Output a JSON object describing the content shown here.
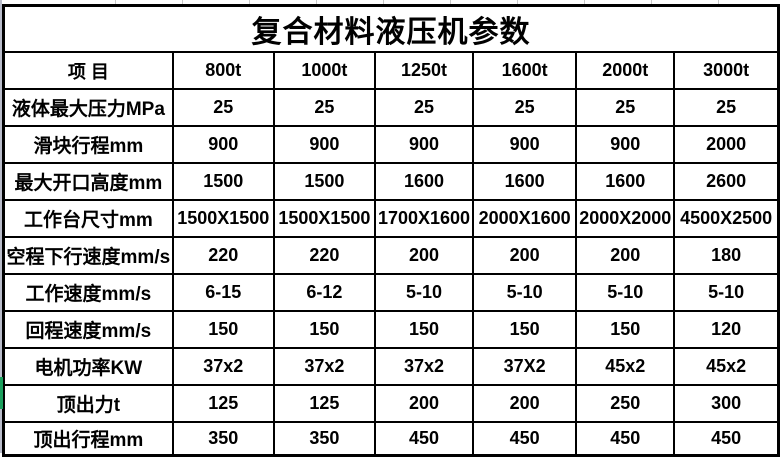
{
  "title": "复合材料液压机参数",
  "table": {
    "header": [
      "项  目",
      "800t",
      "1000t",
      "1250t",
      "1600t",
      "2000t",
      "3000t"
    ],
    "rows": [
      {
        "label": "液体最大压力MPa",
        "values": [
          "25",
          "25",
          "25",
          "25",
          "25",
          "25"
        ]
      },
      {
        "label": "滑块行程mm",
        "values": [
          "900",
          "900",
          "900",
          "900",
          "900",
          "2000"
        ]
      },
      {
        "label": "最大开口高度mm",
        "values": [
          "1500",
          "1500",
          "1600",
          "1600",
          "1600",
          "2600"
        ]
      },
      {
        "label": "工作台尺寸mm",
        "values": [
          "1500X1500",
          "1500X1500",
          "1700X1600",
          "2000X1600",
          "2000X2000",
          "4500X2500"
        ]
      },
      {
        "label": "空程下行速度mm/s",
        "values": [
          "220",
          "220",
          "200",
          "200",
          "200",
          "180"
        ]
      },
      {
        "label": "工作速度mm/s",
        "values": [
          "6-15",
          "6-12",
          "5-10",
          "5-10",
          "5-10",
          "5-10"
        ]
      },
      {
        "label": "回程速度mm/s",
        "values": [
          "150",
          "150",
          "150",
          "150",
          "150",
          "120"
        ]
      },
      {
        "label": "电机功率KW",
        "values": [
          "37x2",
          "37x2",
          "37x2",
          "37X2",
          "45x2",
          "45x2"
        ]
      },
      {
        "label": "顶出力t",
        "values": [
          "125",
          "125",
          "200",
          "200",
          "250",
          "300"
        ]
      },
      {
        "label": "顶出行程mm",
        "values": [
          "350",
          "350",
          "450",
          "450",
          "450",
          "450"
        ]
      }
    ]
  },
  "colors": {
    "border": "#000000",
    "text": "#000000",
    "background": "#ffffff",
    "left_edge_strip": "#b9bcca",
    "selection_green": "#1ca05e",
    "gridline": "#c9c9c9"
  }
}
